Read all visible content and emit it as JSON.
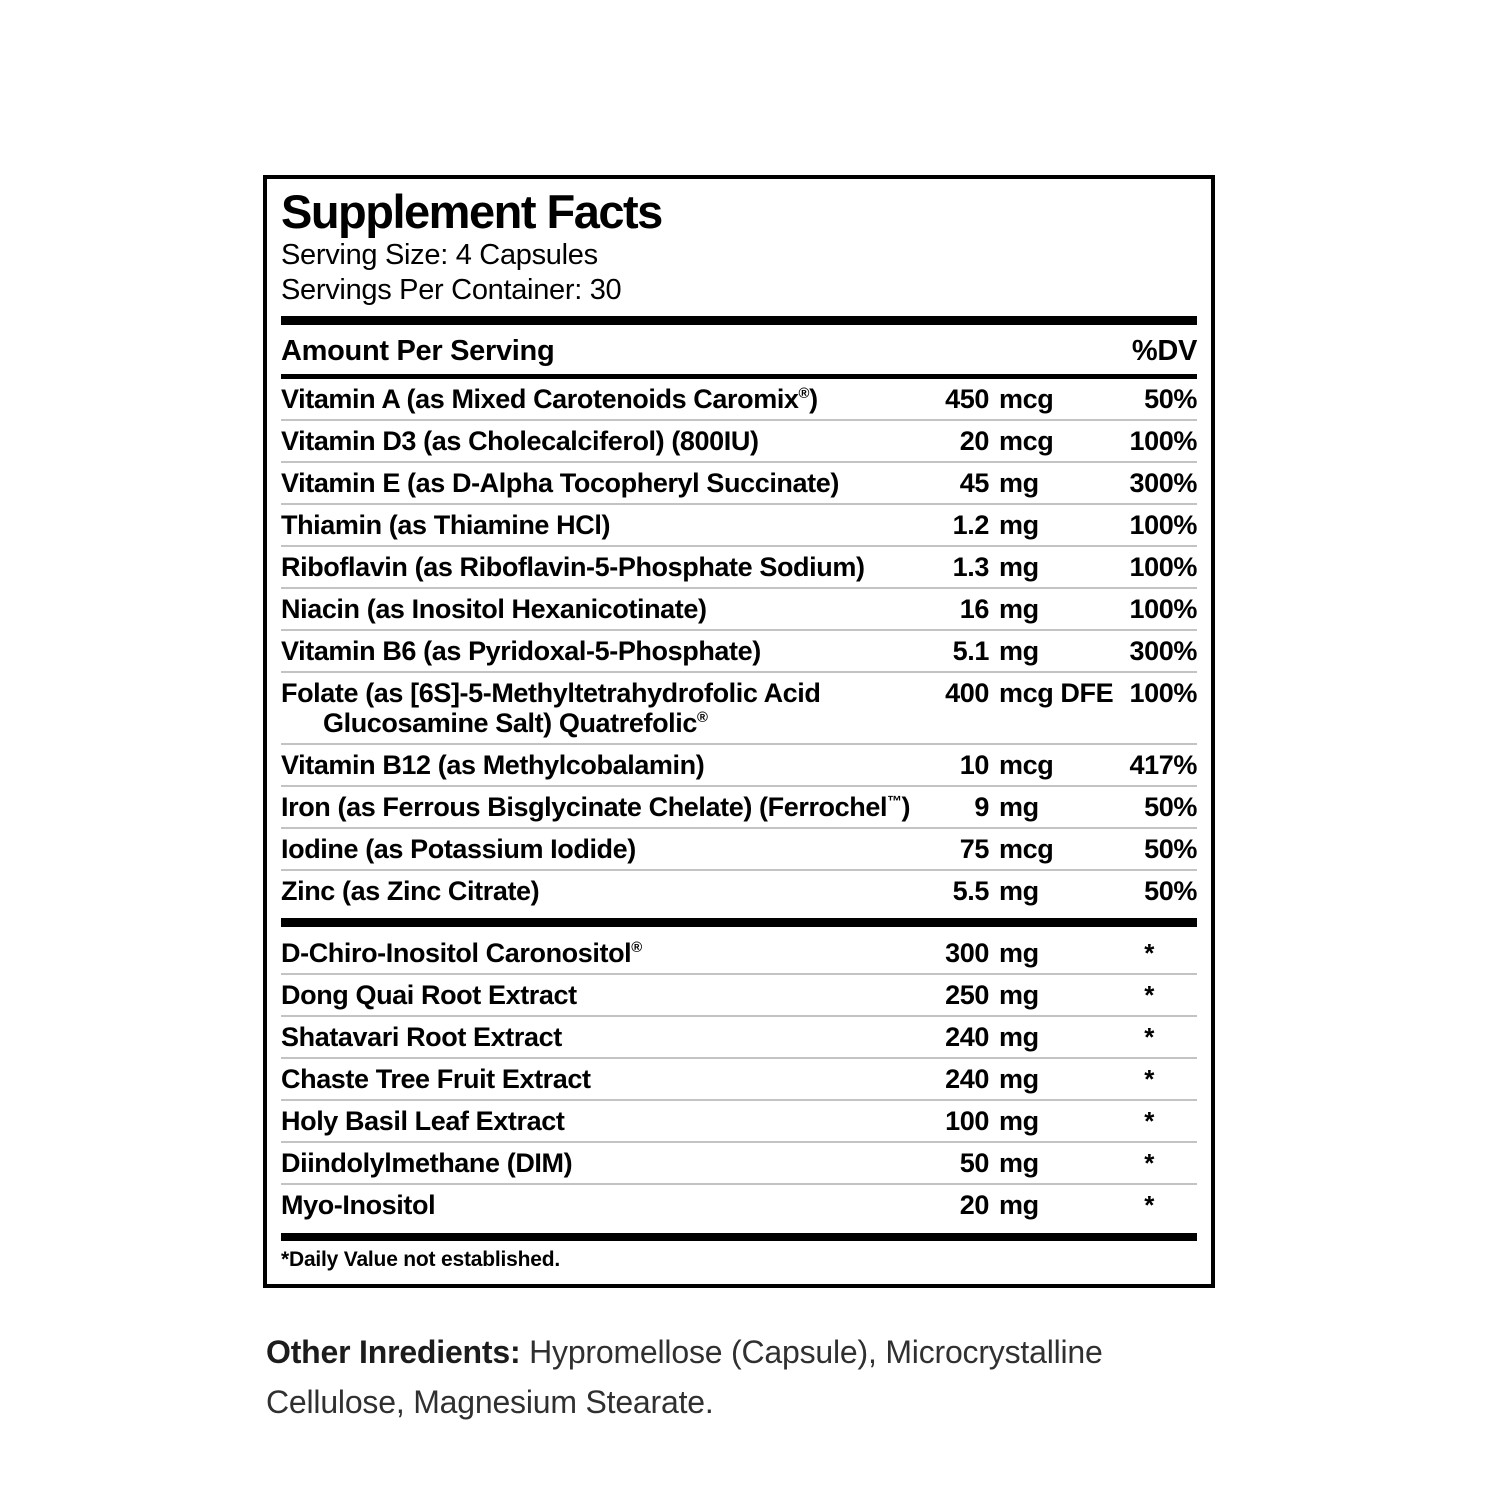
{
  "panel": {
    "title": "Supplement Facts",
    "serving_size": "Serving Size: 4 Capsules",
    "servings_per_container": "Servings Per Container: 30",
    "amount_header": "Amount Per Serving",
    "dv_header": "%DV",
    "nutrients": [
      {
        "name": "Vitamin A (as Mixed Carotenoids Caromix®)",
        "amount": "450",
        "unit": "mcg",
        "dv": "50%"
      },
      {
        "name": "Vitamin D3 (as Cholecalciferol) (800IU)",
        "amount": "20",
        "unit": "mcg",
        "dv": "100%"
      },
      {
        "name": "Vitamin E (as D-Alpha Tocopheryl Succinate)",
        "amount": "45",
        "unit": "mg",
        "dv": "300%"
      },
      {
        "name": "Thiamin (as Thiamine HCl)",
        "amount": "1.2",
        "unit": "mg",
        "dv": "100%"
      },
      {
        "name": "Riboflavin (as Riboflavin-5-Phosphate Sodium)",
        "amount": "1.3",
        "unit": "mg",
        "dv": "100%"
      },
      {
        "name": "Niacin (as Inositol Hexanicotinate)",
        "amount": "16",
        "unit": "mg",
        "dv": "100%"
      },
      {
        "name": "Vitamin B6 (as Pyridoxal-5-Phosphate)",
        "amount": "5.1",
        "unit": "mg",
        "dv": "300%"
      },
      {
        "name": "Folate (as [6S]-5-Methyltetrahydrofolic Acid",
        "name_line2": "Glucosamine Salt) Quatrefolic®",
        "amount": "400",
        "unit": "mcg DFE",
        "dv": "100%"
      },
      {
        "name": "Vitamin B12 (as Methylcobalamin)",
        "amount": "10",
        "unit": "mcg",
        "dv": "417%"
      },
      {
        "name": "Iron (as Ferrous Bisglycinate Chelate) (Ferrochel™)",
        "amount": "9",
        "unit": "mg",
        "dv": "50%"
      },
      {
        "name": "Iodine (as Potassium Iodide)",
        "amount": "75",
        "unit": "mcg",
        "dv": "50%"
      },
      {
        "name": "Zinc (as Zinc Citrate)",
        "amount": "5.5",
        "unit": "mg",
        "dv": "50%"
      }
    ],
    "botanicals": [
      {
        "name": "D-Chiro-Inositol Caronositol®",
        "amount": "300",
        "unit": "mg",
        "dv": "*"
      },
      {
        "name": "Dong Quai Root Extract",
        "amount": "250",
        "unit": "mg",
        "dv": "*"
      },
      {
        "name": "Shatavari Root Extract",
        "amount": "240",
        "unit": "mg",
        "dv": "*"
      },
      {
        "name": "Chaste Tree Fruit Extract",
        "amount": "240",
        "unit": "mg",
        "dv": "*"
      },
      {
        "name": "Holy Basil Leaf Extract",
        "amount": "100",
        "unit": "mg",
        "dv": "*"
      },
      {
        "name": "Diindolylmethane (DIM)",
        "amount": "50",
        "unit": "mg",
        "dv": "*"
      },
      {
        "name": "Myo-Inositol",
        "amount": "20",
        "unit": "mg",
        "dv": "*"
      }
    ],
    "footnote": "*Daily Value not established."
  },
  "other_ingredients": {
    "label": "Other Inredients:",
    "text": " Hypromellose (Capsule), Microcrystalline Cellulose, Magnesium Stearate."
  }
}
